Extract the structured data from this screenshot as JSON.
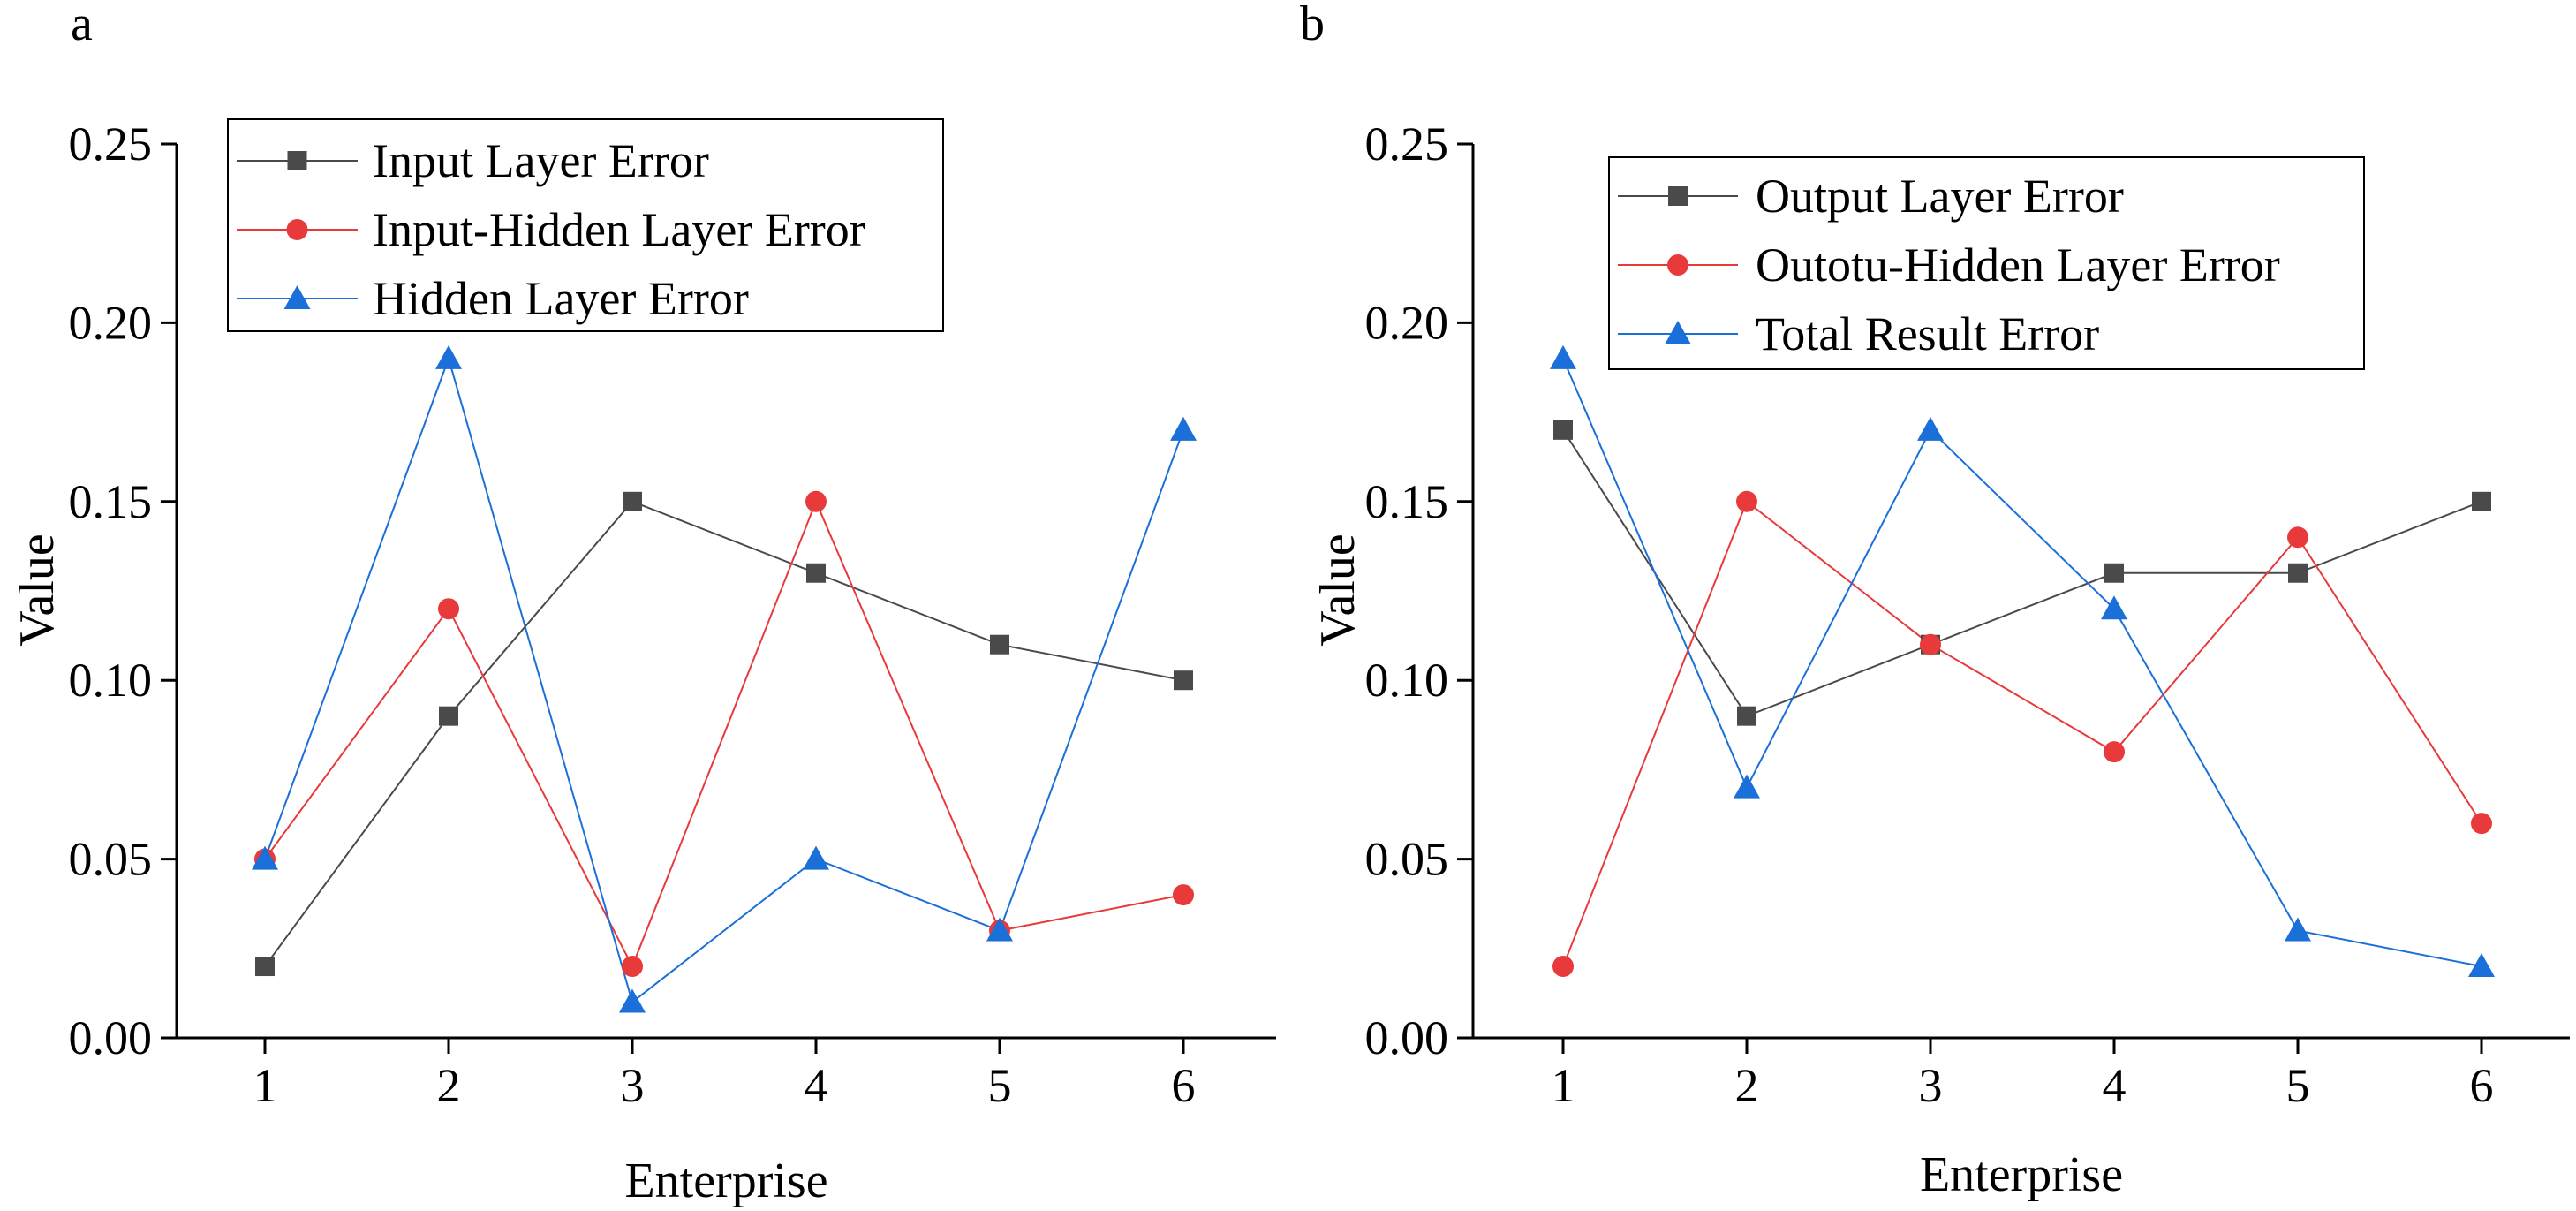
{
  "chart_data": [
    {
      "type": "line",
      "panel_label": "a",
      "categories": [
        "1",
        "2",
        "3",
        "4",
        "5",
        "6"
      ],
      "xlabel": "Enterprise",
      "ylabel": "Value",
      "ylim": [
        0,
        0.25
      ],
      "yticks": [
        "0.00",
        "0.05",
        "0.10",
        "0.15",
        "0.20",
        "0.25"
      ],
      "grid": false,
      "legend_position": "top-left",
      "series": [
        {
          "name": "Input Layer Error",
          "color": "#4a4a4a",
          "marker": "square",
          "values": [
            0.02,
            0.09,
            0.15,
            0.13,
            0.11,
            0.1
          ]
        },
        {
          "name": "Input-Hidden Layer Error",
          "color": "#e8393b",
          "marker": "circle",
          "values": [
            0.05,
            0.12,
            0.02,
            0.15,
            0.03,
            0.04
          ]
        },
        {
          "name": "Hidden Layer Error",
          "color": "#1a6fd8",
          "marker": "triangle",
          "values": [
            0.05,
            0.19,
            0.01,
            0.05,
            0.03,
            0.17
          ]
        }
      ]
    },
    {
      "type": "line",
      "panel_label": "b",
      "categories": [
        "1",
        "2",
        "3",
        "4",
        "5",
        "6"
      ],
      "xlabel": "Enterprise",
      "ylabel": "Value",
      "ylim": [
        0,
        0.25
      ],
      "yticks": [
        "0.00",
        "0.05",
        "0.10",
        "0.15",
        "0.20",
        "0.25"
      ],
      "grid": false,
      "legend_position": "top-left",
      "series": [
        {
          "name": "Output Layer Error",
          "color": "#4a4a4a",
          "marker": "square",
          "values": [
            0.17,
            0.09,
            0.11,
            0.13,
            0.13,
            0.15
          ]
        },
        {
          "name": "Outotu-Hidden Layer Error",
          "color": "#e8393b",
          "marker": "circle",
          "values": [
            0.02,
            0.15,
            0.11,
            0.08,
            0.14,
            0.06
          ]
        },
        {
          "name": "Total Result Error",
          "color": "#1a6fd8",
          "marker": "triangle",
          "values": [
            0.19,
            0.07,
            0.17,
            0.12,
            0.03,
            0.02
          ]
        }
      ]
    }
  ]
}
